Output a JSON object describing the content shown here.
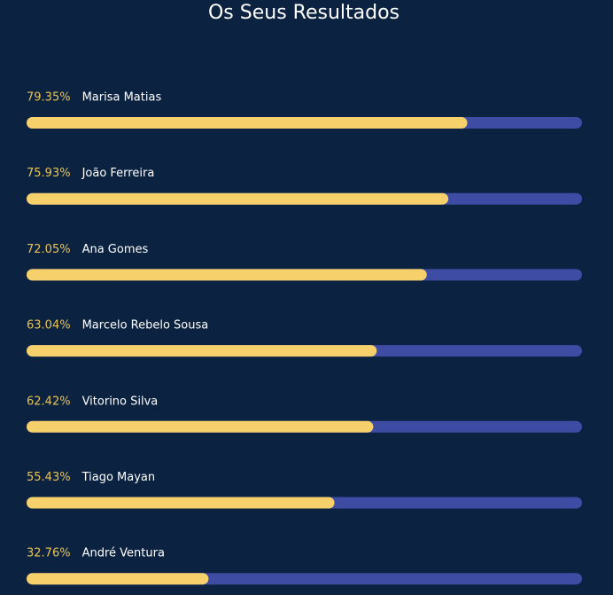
{
  "chart_data": {
    "type": "bar",
    "orientation": "horizontal",
    "title": "Os Seus Resultados",
    "categories": [
      "Marisa Matias",
      "João Ferreira",
      "Ana Gomes",
      "Marcelo Rebelo Sousa",
      "Vitorino Silva",
      "Tiago Mayan",
      "André Ventura"
    ],
    "values": [
      79.35,
      75.93,
      72.05,
      63.04,
      62.42,
      55.43,
      32.76
    ],
    "value_labels": [
      "79.35%",
      "75.93%",
      "72.05%",
      "63.04%",
      "62.42%",
      "55.43%",
      "32.76%"
    ],
    "xlim": [
      0,
      100
    ],
    "color": "#f5d06b",
    "track_color": "#3f4ca3"
  }
}
